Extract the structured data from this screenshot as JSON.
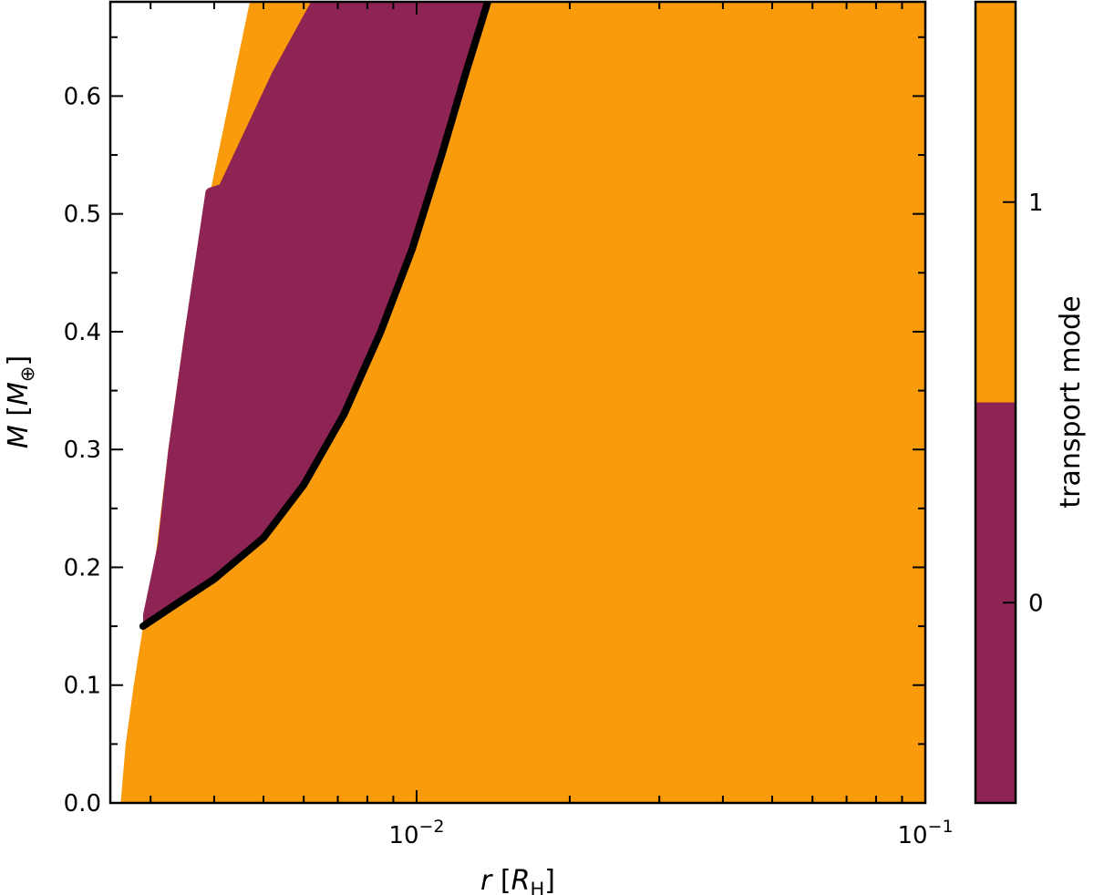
{
  "chart_data": {
    "type": "heatmap",
    "title": "",
    "xlabel": {
      "var": "r",
      "unit": "R",
      "unit_sub": "H"
    },
    "ylabel": {
      "var": "M",
      "unit": "M",
      "unit_sub": "⊕"
    },
    "xscale": "log",
    "xlim": [
      0.0025,
      0.1
    ],
    "ylim": [
      0.0,
      0.68
    ],
    "x_ticks": [
      {
        "value": 0.01,
        "base": "10",
        "exp": "−2"
      },
      {
        "value": 0.1,
        "base": "10",
        "exp": "−1"
      }
    ],
    "y_ticks": [
      {
        "value": 0.0,
        "label": "0.0"
      },
      {
        "value": 0.1,
        "label": "0.1"
      },
      {
        "value": 0.2,
        "label": "0.2"
      },
      {
        "value": 0.3,
        "label": "0.3"
      },
      {
        "value": 0.4,
        "label": "0.4"
      },
      {
        "value": 0.5,
        "label": "0.5"
      },
      {
        "value": 0.6,
        "label": "0.6"
      }
    ],
    "colors": {
      "mode_0": "#8e2454",
      "mode_1": "#f99b0a",
      "boundary": "#000000"
    },
    "colorbar": {
      "label": "transport mode",
      "range": [
        -0.5,
        1.5
      ],
      "split": 0.5,
      "ticks": [
        {
          "value": 0,
          "label": "0"
        },
        {
          "value": 1,
          "label": "1"
        }
      ]
    },
    "regions": {
      "domain_left_edge": [
        {
          "x": 0.00262,
          "y": 0.0
        },
        {
          "x": 0.00268,
          "y": 0.05
        },
        {
          "x": 0.00278,
          "y": 0.1
        },
        {
          "x": 0.0029,
          "y": 0.15
        },
        {
          "x": 0.00305,
          "y": 0.2
        },
        {
          "x": 0.00325,
          "y": 0.3
        },
        {
          "x": 0.0035,
          "y": 0.4
        },
        {
          "x": 0.00385,
          "y": 0.5
        },
        {
          "x": 0.0043,
          "y": 0.6
        },
        {
          "x": 0.0047,
          "y": 0.68
        }
      ],
      "mode_0_region": [
        {
          "x": 0.0029,
          "y": 0.16
        },
        {
          "x": 0.0031,
          "y": 0.22
        },
        {
          "x": 0.00325,
          "y": 0.3
        },
        {
          "x": 0.0035,
          "y": 0.4
        },
        {
          "x": 0.00385,
          "y": 0.52
        },
        {
          "x": 0.0039,
          "y": 0.522
        },
        {
          "x": 0.0041,
          "y": 0.525
        },
        {
          "x": 0.0052,
          "y": 0.62
        },
        {
          "x": 0.0062,
          "y": 0.68
        },
        {
          "x": 0.0138,
          "y": 0.68
        },
        {
          "x": 0.0125,
          "y": 0.62
        },
        {
          "x": 0.0112,
          "y": 0.55
        },
        {
          "x": 0.0098,
          "y": 0.47
        },
        {
          "x": 0.0085,
          "y": 0.4
        },
        {
          "x": 0.0072,
          "y": 0.33
        },
        {
          "x": 0.006,
          "y": 0.27
        },
        {
          "x": 0.005,
          "y": 0.225
        },
        {
          "x": 0.004,
          "y": 0.19
        },
        {
          "x": 0.0034,
          "y": 0.17
        },
        {
          "x": 0.0029,
          "y": 0.15
        }
      ]
    },
    "boundary_line": [
      {
        "x": 0.0029,
        "y": 0.15
      },
      {
        "x": 0.0034,
        "y": 0.17
      },
      {
        "x": 0.004,
        "y": 0.19
      },
      {
        "x": 0.005,
        "y": 0.225
      },
      {
        "x": 0.006,
        "y": 0.27
      },
      {
        "x": 0.0072,
        "y": 0.33
      },
      {
        "x": 0.0085,
        "y": 0.4
      },
      {
        "x": 0.0098,
        "y": 0.47
      },
      {
        "x": 0.0112,
        "y": 0.55
      },
      {
        "x": 0.0125,
        "y": 0.62
      },
      {
        "x": 0.0138,
        "y": 0.68
      }
    ]
  }
}
